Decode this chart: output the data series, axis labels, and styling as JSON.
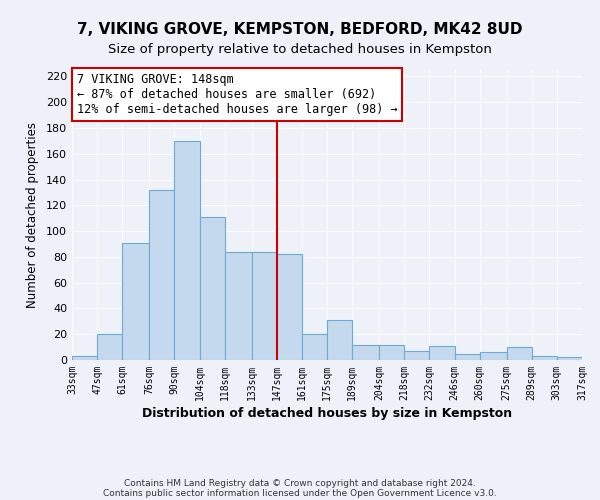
{
  "title": "7, VIKING GROVE, KEMPSTON, BEDFORD, MK42 8UD",
  "subtitle": "Size of property relative to detached houses in Kempston",
  "xlabel": "Distribution of detached houses by size in Kempston",
  "ylabel": "Number of detached properties",
  "bar_color": "#c5d9ee",
  "bar_edge_color": "#6aaad4",
  "bins": [
    33,
    47,
    61,
    76,
    90,
    104,
    118,
    133,
    147,
    161,
    175,
    189,
    204,
    218,
    232,
    246,
    260,
    275,
    289,
    303,
    317
  ],
  "counts": [
    3,
    20,
    91,
    132,
    170,
    111,
    84,
    84,
    82,
    20,
    31,
    12,
    12,
    7,
    11,
    5,
    6,
    10,
    3,
    2
  ],
  "tick_labels": [
    "33sqm",
    "47sqm",
    "61sqm",
    "76sqm",
    "90sqm",
    "104sqm",
    "118sqm",
    "133sqm",
    "147sqm",
    "161sqm",
    "175sqm",
    "189sqm",
    "204sqm",
    "218sqm",
    "232sqm",
    "246sqm",
    "260sqm",
    "275sqm",
    "289sqm",
    "303sqm",
    "317sqm"
  ],
  "vline_x": 147,
  "vline_color": "#cc0000",
  "ylim": [
    0,
    225
  ],
  "yticks": [
    0,
    20,
    40,
    60,
    80,
    100,
    120,
    140,
    160,
    180,
    200,
    220
  ],
  "annotation_title": "7 VIKING GROVE: 148sqm",
  "annotation_line1": "← 87% of detached houses are smaller (692)",
  "annotation_line2": "12% of semi-detached houses are larger (98) →",
  "annotation_box_color": "#ffffff",
  "annotation_box_edge": "#cc0000",
  "footnote1": "Contains HM Land Registry data © Crown copyright and database right 2024.",
  "footnote2": "Contains public sector information licensed under the Open Government Licence v3.0.",
  "background_color": "#eef2f8",
  "grid_color": "#ffffff",
  "title_fontsize": 11,
  "subtitle_fontsize": 9.5,
  "annotation_fontsize": 8.5
}
